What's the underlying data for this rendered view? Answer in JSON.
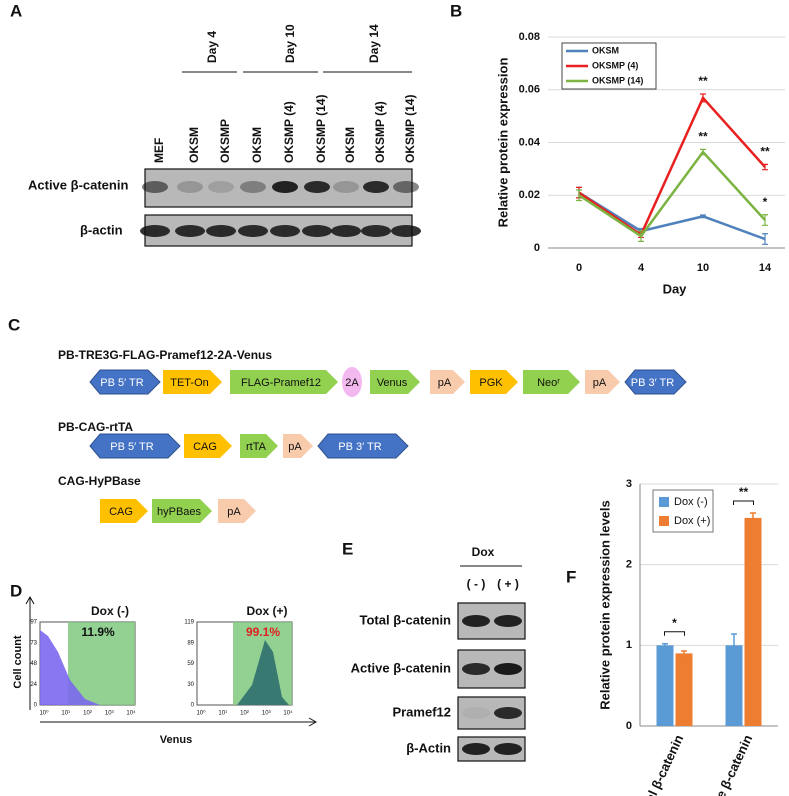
{
  "panel_labels": [
    "A",
    "B",
    "C",
    "D",
    "E",
    "F"
  ],
  "panel_a": {
    "columns": [
      "MEF",
      "OKSM",
      "OKSMP",
      "OKSM",
      "OKSMP (4)",
      "OKSMP (14)",
      "OKSM",
      "OKSMP (4)",
      "OKSMP (14)"
    ],
    "groups": [
      "Day 4",
      "Day 10",
      "Day 14"
    ],
    "rows": [
      "Active β-catenin",
      "β-actin"
    ]
  },
  "chart_data": [
    {
      "type": "line",
      "y_label": "Relative protein  expression",
      "x_label": "Day",
      "categories": [
        "0",
        "4",
        "10",
        "14"
      ],
      "ylim": [
        0,
        0.08
      ],
      "yticks": [
        0,
        0.02,
        0.04,
        0.06,
        0.08
      ],
      "grid": true,
      "legend": "upper left",
      "series": [
        {
          "name": "OKSM",
          "color": "#4f81bd",
          "values": [
            0.021,
            0.0064,
            0.012,
            0.0034
          ],
          "errors": [
            0.002,
            0.001,
            0.0005,
            0.002
          ]
        },
        {
          "name": "OKSMP (4)",
          "color": "#e82020",
          "values": [
            0.021,
            0.005,
            0.0569,
            0.0307
          ],
          "errors": [
            0.002,
            0.001,
            0.0015,
            0.001
          ]
        },
        {
          "name": "OKSMP (14)",
          "color": "#7cb342",
          "values": [
            0.02,
            0.0045,
            0.0364,
            0.0106
          ],
          "errors": [
            0.002,
            0.002,
            0.001,
            0.002
          ]
        }
      ],
      "annotations": [
        "**",
        "**",
        "**",
        "*"
      ]
    },
    {
      "type": "bar",
      "y_label": "Relative protein expression levels",
      "categories": [
        "Total β-catenin",
        "Active β-catenin"
      ],
      "ylim": [
        0,
        3
      ],
      "yticks": [
        0,
        1,
        2,
        3
      ],
      "grid": true,
      "legend": "upper left",
      "series": [
        {
          "name": "Dox (-)",
          "color": "#5b9bd5",
          "values": [
            1.0,
            1.0
          ],
          "errors": [
            0.02,
            0.14
          ]
        },
        {
          "name": "Dox (+)",
          "color": "#ed7d31",
          "values": [
            0.9,
            2.58
          ],
          "errors": [
            0.03,
            0.06
          ]
        }
      ],
      "annotations": [
        "*",
        "**"
      ]
    }
  ],
  "panel_c": {
    "constructs": [
      {
        "name": "PB-TRE3G-FLAG-Pramef12-2A-Venus",
        "elements": [
          "PB 5′ TR",
          "TET-On",
          "FLAG-Pramef12",
          "2A",
          "Venus",
          "pA",
          "PGK",
          "Neoʳ",
          "pA",
          "PB 3′ TR"
        ]
      },
      {
        "name": "PB-CAG-rtTA",
        "elements": [
          "PB 5′ TR",
          "CAG",
          "rtTA",
          "pA",
          "PB 3′ TR"
        ]
      },
      {
        "name": "CAG-HyPBase",
        "elements": [
          "CAG",
          "hyPBaes",
          "pA"
        ]
      }
    ]
  },
  "panel_d": {
    "y_label": "Cell count",
    "x_label": "Venus",
    "plots": [
      {
        "title": "Dox (-)",
        "percent": "11.9%",
        "yticks": [
          97,
          73,
          48,
          24,
          0
        ]
      },
      {
        "title": "Dox (+)",
        "percent": "99.1%",
        "yticks": [
          119,
          89,
          59,
          30,
          0
        ]
      }
    ],
    "xticks": [
      "10⁰",
      "10¹",
      "10²",
      "10³",
      "10⁴"
    ]
  },
  "panel_e": {
    "header": "Dox",
    "columns": [
      "( - )",
      "( + )"
    ],
    "rows": [
      "Total β-catenin",
      "Active β-catenin",
      "Pramef12",
      "β-Actin"
    ]
  }
}
